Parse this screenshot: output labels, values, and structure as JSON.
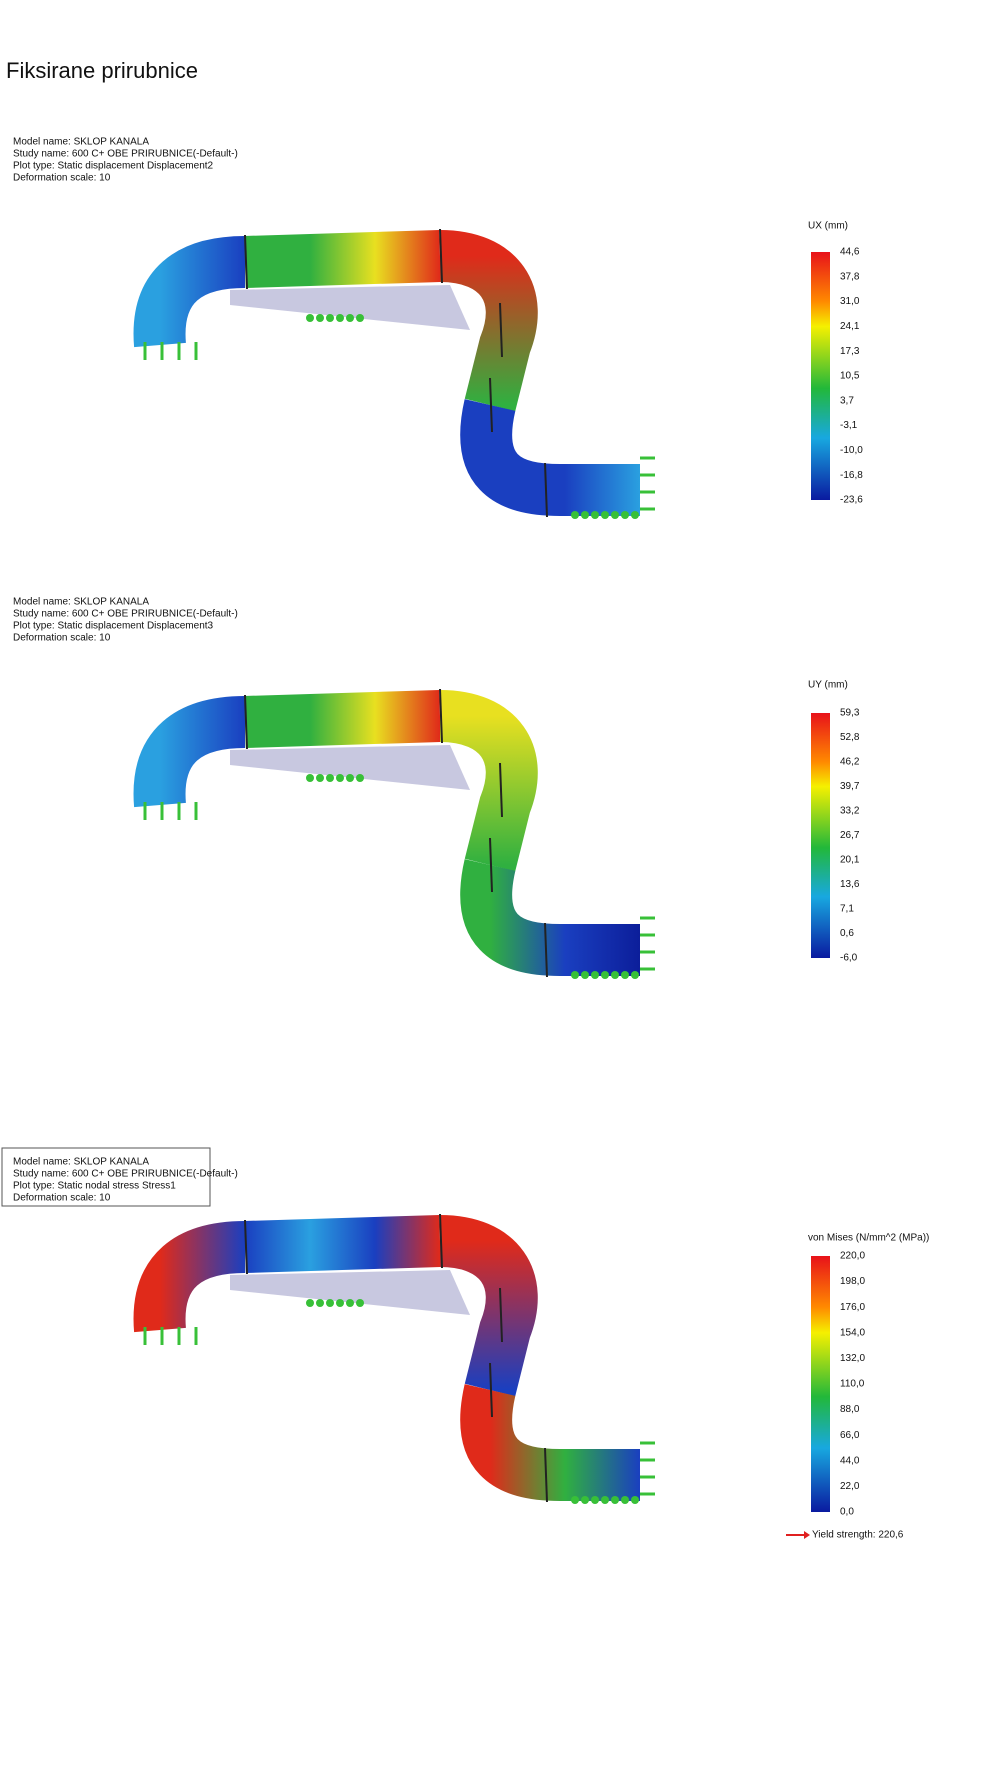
{
  "title": "Fiksirane prirubnice",
  "plots": [
    {
      "info": [
        "Model name: SKLOP KANALA",
        "Study name: 600 C+ OBE PRIRUBNICE(-Default-)",
        "Plot type: Static displacement Displacement2",
        "Deformation scale: 10"
      ],
      "legend_title": "UX (mm)",
      "legend_labels": [
        "44,6",
        "37,8",
        "31,0",
        "24,1",
        "17,3",
        "10,5",
        "3,7",
        "-3,1",
        "-10,0",
        "-16,8",
        "-23,6"
      ]
    },
    {
      "info": [
        "Model name: SKLOP KANALA",
        "Study name: 600 C+ OBE PRIRUBNICE(-Default-)",
        "Plot type: Static displacement Displacement3",
        "Deformation scale: 10"
      ],
      "legend_title": "UY (mm)",
      "legend_labels": [
        "59,3",
        "52,8",
        "46,2",
        "39,7",
        "33,2",
        "26,7",
        "20,1",
        "13,6",
        "7,1",
        "0,6",
        "-6,0"
      ]
    },
    {
      "info": [
        "Model name: SKLOP KANALA",
        "Study name: 600 C+ OBE PRIRUBNICE(-Default-)",
        "Plot type: Static nodal stress Stress1",
        "Deformation scale: 10"
      ],
      "legend_title": "von Mises (N/mm^2 (MPa))",
      "legend_labels": [
        "220,0",
        "198,0",
        "176,0",
        "154,0",
        "132,0",
        "110,0",
        "88,0",
        "66,0",
        "44,0",
        "22,0",
        "0,0"
      ],
      "yield": "Yield strength: 220,6"
    }
  ]
}
